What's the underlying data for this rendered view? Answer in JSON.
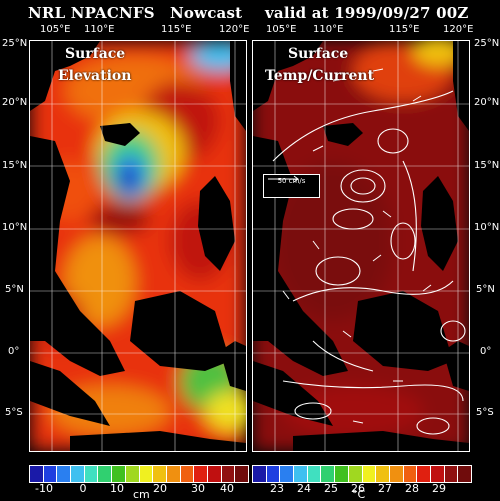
{
  "title": {
    "model": "NRL NPACNFS",
    "kind": "Nowcast",
    "valid": "valid at 1999/09/27 00Z"
  },
  "lon_labels": [
    "105°E",
    "110°E",
    "115°E",
    "120°E"
  ],
  "lat_labels": [
    "25°N",
    "20°N",
    "15°N",
    "10°N",
    "5°N",
    "0°",
    "5°S"
  ],
  "left_panel": {
    "label_line1": "Surface",
    "label_line2": "Elevation",
    "colorbar_ticks": [
      "-10",
      "0",
      "10",
      "20",
      "30",
      "40"
    ],
    "colorbar_unit": "cm",
    "colorbar_colors": [
      "#1a1aa8",
      "#1f3fe0",
      "#2a7ff0",
      "#3fc0f0",
      "#40e0c0",
      "#30d070",
      "#40c020",
      "#a0d820",
      "#f0f020",
      "#f0c010",
      "#f09010",
      "#f06010",
      "#e02010",
      "#c01010",
      "#901010",
      "#700c0c"
    ]
  },
  "right_panel": {
    "label_line1": "Surface",
    "label_line2": "Temp/Current",
    "vector_key": "50 cm/s",
    "colorbar_ticks": [
      "23",
      "24",
      "25",
      "26",
      "27",
      "28",
      "29"
    ],
    "colorbar_unit": "°C",
    "colorbar_colors": [
      "#1a1aa8",
      "#1f3fe0",
      "#2a7ff0",
      "#3fc0f0",
      "#40e0c0",
      "#30d070",
      "#40c020",
      "#a0d820",
      "#f0f020",
      "#f0c010",
      "#f09010",
      "#f06010",
      "#e02010",
      "#c01010",
      "#901010",
      "#700c0c"
    ]
  }
}
